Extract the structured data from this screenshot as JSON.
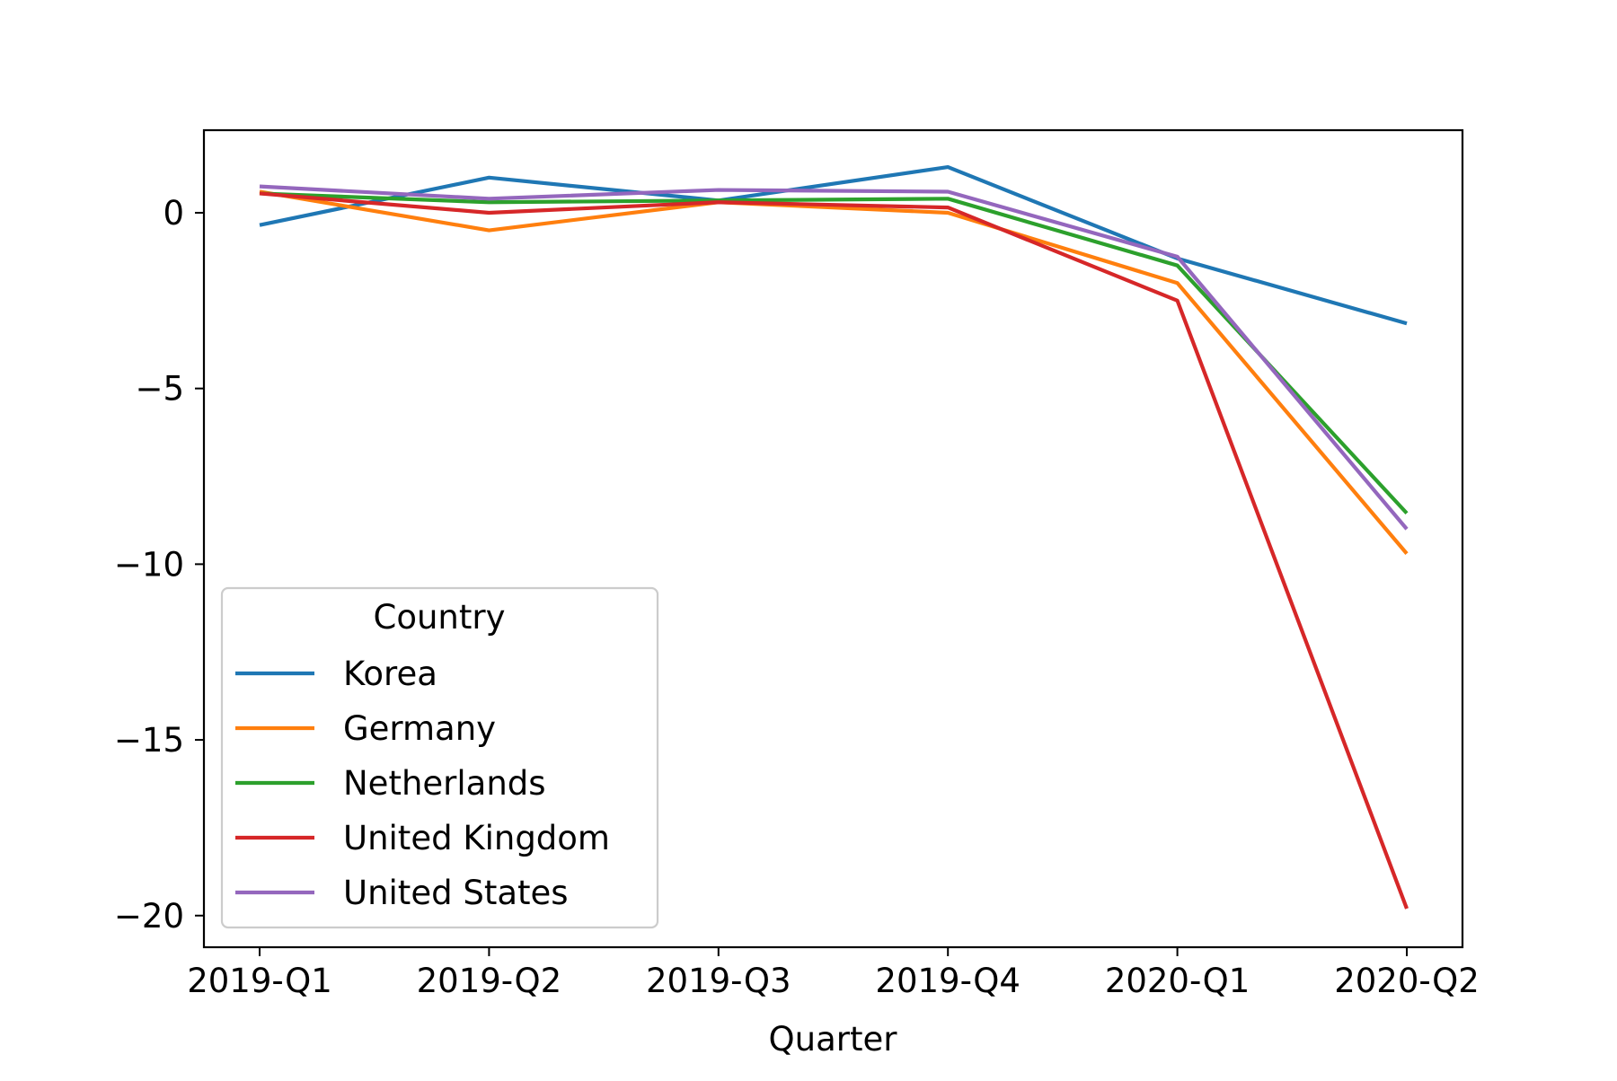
{
  "chart_data": {
    "type": "line",
    "title": "",
    "xlabel": "Quarter",
    "ylabel": "",
    "categories": [
      "2019-Q1",
      "2019-Q2",
      "2019-Q3",
      "2019-Q4",
      "2020-Q1",
      "2020-Q2"
    ],
    "ylim": [
      -20.9,
      2.35
    ],
    "yticks": [
      0,
      -5,
      -10,
      -15,
      -20
    ],
    "ytick_labels": [
      "0",
      "−5",
      "−10",
      "−15",
      "−20"
    ],
    "grid": false,
    "legend": {
      "title": "Country",
      "placement": "lower-left"
    },
    "series": [
      {
        "name": "Korea",
        "color": "#1f77b4",
        "values": [
          -0.35,
          1.0,
          0.35,
          1.3,
          -1.3,
          -3.15
        ]
      },
      {
        "name": "Germany",
        "color": "#ff7f0e",
        "values": [
          0.6,
          -0.5,
          0.3,
          0.0,
          -2.0,
          -9.7
        ]
      },
      {
        "name": "Netherlands",
        "color": "#2ca02c",
        "values": [
          0.55,
          0.3,
          0.35,
          0.4,
          -1.5,
          -8.55
        ]
      },
      {
        "name": "United Kingdom",
        "color": "#d62728",
        "values": [
          0.55,
          0.0,
          0.3,
          0.15,
          -2.5,
          -19.8
        ]
      },
      {
        "name": "United States",
        "color": "#9467bd",
        "values": [
          0.75,
          0.4,
          0.65,
          0.6,
          -1.25,
          -9.0
        ]
      }
    ]
  }
}
